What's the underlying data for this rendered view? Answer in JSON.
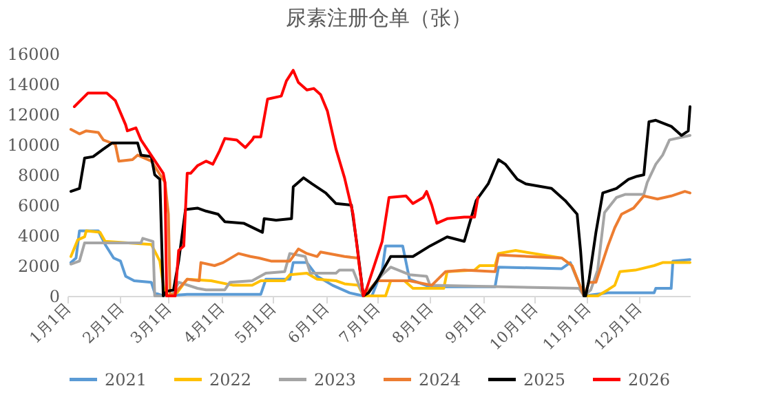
{
  "chart_data": {
    "type": "line",
    "title": "尿素注册仓单（张）",
    "legend": "bottom",
    "grid": false,
    "line_style": "solid",
    "marker": "none",
    "xlim": [
      "--01-01",
      "--12-31"
    ],
    "xticks": [
      {
        "value": "--01-01",
        "label": "1月1日"
      },
      {
        "value": "--02-01",
        "label": "2月1日"
      },
      {
        "value": "--03-01",
        "label": "3月1日"
      },
      {
        "value": "--04-01",
        "label": "4月1日"
      },
      {
        "value": "--05-01",
        "label": "5月1日"
      },
      {
        "value": "--06-01",
        "label": "6月1日"
      },
      {
        "value": "--07-01",
        "label": "7月1日"
      },
      {
        "value": "--08-01",
        "label": "8月1日"
      },
      {
        "value": "--09-01",
        "label": "9月1日"
      },
      {
        "value": "--10-01",
        "label": "10月1日"
      },
      {
        "value": "--11-01",
        "label": "11月1日"
      },
      {
        "value": "--12-01",
        "label": "12月1日"
      }
    ],
    "ylim": [
      0,
      16000
    ],
    "yticks": [
      0,
      2000,
      4000,
      6000,
      8000,
      10000,
      12000,
      14000,
      16000
    ],
    "series": [
      {
        "name": "2021",
        "color": "#5b9bd5",
        "x": [
          "--01-03",
          "--01-06",
          "--01-08",
          "--01-19",
          "--01-23",
          "--01-28",
          "--02-01",
          "--02-04",
          "--02-09",
          "--02-19",
          "--02-21",
          "--02-26",
          "--03-12",
          "--04-24",
          "--04-27",
          "--05-11",
          "--05-13",
          "--05-21",
          "--05-27",
          "--06-05",
          "--06-15",
          "--06-23",
          "--06-28",
          "--07-04",
          "--07-06",
          "--07-16",
          "--07-20",
          "--08-01",
          "--09-08",
          "--09-10",
          "--10-17",
          "--10-22",
          "--10-26",
          "--10-30",
          "--11-13",
          "--12-10",
          "--12-11",
          "--12-20",
          "--12-21",
          "--12-31"
        ],
        "values": [
          2200,
          2500,
          4300,
          4300,
          3400,
          2500,
          2300,
          1300,
          1000,
          900,
          200,
          0,
          100,
          100,
          1100,
          1100,
          2200,
          2200,
          1300,
          700,
          200,
          0,
          0,
          1700,
          3300,
          3300,
          1100,
          600,
          600,
          1900,
          1800,
          2200,
          1100,
          0,
          200,
          200,
          500,
          500,
          2300,
          2400
        ]
      },
      {
        "name": "2022",
        "color": "#ffc000",
        "x": [
          "--01-03",
          "--01-07",
          "--01-11",
          "--01-12",
          "--01-20",
          "--01-23",
          "--02-19",
          "--02-24",
          "--02-27",
          "--03-06",
          "--03-12",
          "--03-26",
          "--04-08",
          "--04-19",
          "--04-24",
          "--05-08",
          "--05-11",
          "--05-21",
          "--05-27",
          "--06-07",
          "--06-12",
          "--06-20",
          "--06-23",
          "--07-06",
          "--07-09",
          "--07-17",
          "--07-22",
          "--08-09",
          "--08-11",
          "--08-27",
          "--08-30",
          "--09-08",
          "--09-10",
          "--09-20",
          "--10-17",
          "--10-23",
          "--10-30",
          "--11-07",
          "--11-13",
          "--11-17",
          "--11-20",
          "--11-29",
          "--12-10",
          "--12-15",
          "--12-31"
        ],
        "values": [
          2600,
          3700,
          3900,
          4300,
          4200,
          3600,
          3400,
          2300,
          0,
          200,
          1100,
          1000,
          700,
          700,
          1000,
          1000,
          1400,
          1500,
          1100,
          1000,
          800,
          700,
          0,
          0,
          1000,
          1000,
          500,
          500,
          1600,
          1700,
          2000,
          2000,
          2800,
          3000,
          2500,
          2000,
          0,
          0,
          400,
          700,
          1600,
          1700,
          2000,
          2200,
          2200
        ]
      },
      {
        "name": "2023",
        "color": "#a5a5a5",
        "x": [
          "--01-03",
          "--01-08",
          "--01-11",
          "--02-13",
          "--02-14",
          "--02-20",
          "--02-21",
          "--03-03",
          "--03-07",
          "--03-18",
          "--03-23",
          "--04-03",
          "--04-06",
          "--04-19",
          "--04-27",
          "--05-08",
          "--05-11",
          "--05-20",
          "--05-23",
          "--06-07",
          "--06-09",
          "--06-17",
          "--06-23",
          "--06-25",
          "--07-04",
          "--07-09",
          "--07-20",
          "--07-30",
          "--08-01",
          "--10-27",
          "--10-30",
          "--11-03",
          "--11-07",
          "--11-11",
          "--11-18",
          "--11-23",
          "--12-04",
          "--12-06",
          "--12-11",
          "--12-15",
          "--12-19",
          "--12-31"
        ],
        "values": [
          2100,
          2300,
          3500,
          3500,
          3800,
          3600,
          0,
          0,
          900,
          500,
          400,
          400,
          900,
          1000,
          1500,
          1600,
          2800,
          2600,
          1500,
          1500,
          1700,
          1700,
          0,
          200,
          1400,
          1900,
          1400,
          1300,
          700,
          500,
          0,
          400,
          1700,
          5500,
          6500,
          6700,
          6700,
          7500,
          8700,
          9300,
          10300,
          10600
        ]
      },
      {
        "name": "2024",
        "color": "#ed7d31",
        "x": [
          "--01-03",
          "--01-08",
          "--01-12",
          "--01-19",
          "--01-22",
          "--01-29",
          "--01-31",
          "--02-08",
          "--02-11",
          "--02-19",
          "--02-27",
          "--03-01",
          "--03-02",
          "--03-05",
          "--03-12",
          "--03-19",
          "--03-20",
          "--03-28",
          "--04-02",
          "--04-11",
          "--04-18",
          "--04-23",
          "--04-30",
          "--05-11",
          "--05-16",
          "--05-21",
          "--05-27",
          "--05-29",
          "--06-12",
          "--06-20",
          "--06-23",
          "--06-25",
          "--07-01",
          "--07-20",
          "--08-02",
          "--08-10",
          "--08-21",
          "--09-08",
          "--09-10",
          "--10-17",
          "--10-23",
          "--10-30",
          "--11-02",
          "--11-06",
          "--11-13",
          "--11-17",
          "--11-21",
          "--11-28",
          "--12-04",
          "--12-12",
          "--12-20",
          "--12-28",
          "--12-31"
        ],
        "values": [
          11000,
          10700,
          10900,
          10800,
          10300,
          10000,
          8900,
          9000,
          9300,
          8900,
          7500,
          5400,
          0,
          200,
          1100,
          1000,
          2200,
          2000,
          2200,
          2800,
          2600,
          2500,
          2300,
          2300,
          3100,
          2800,
          2600,
          2900,
          2600,
          2500,
          0,
          200,
          1000,
          1000,
          700,
          1600,
          1700,
          1600,
          2700,
          2500,
          2000,
          0,
          900,
          900,
          3300,
          4500,
          5400,
          5800,
          6600,
          6400,
          6600,
          6900,
          6800
        ]
      },
      {
        "name": "2025",
        "color": "#000000",
        "x": [
          "--01-03",
          "--01-08",
          "--01-11",
          "--01-16",
          "--01-22",
          "--01-27",
          "--02-11",
          "--02-13",
          "--02-19",
          "--02-21",
          "--02-24",
          "--02-26",
          "--02-28",
          "--03-04",
          "--03-07",
          "--03-11",
          "--03-18",
          "--03-23",
          "--03-30",
          "--04-03",
          "--04-14",
          "--04-25",
          "--04-26",
          "--05-03",
          "--05-12",
          "--05-13",
          "--05-19",
          "--05-24",
          "--06-01",
          "--06-07",
          "--06-16",
          "--06-19",
          "--06-23",
          "--06-26",
          "--07-01",
          "--07-09",
          "--07-22",
          "--08-01",
          "--08-11",
          "--08-21",
          "--08-28",
          "--09-04",
          "--09-10",
          "--09-14",
          "--09-21",
          "--09-26",
          "--10-11",
          "--10-19",
          "--10-26",
          "--10-28",
          "--10-30",
          "--10-31",
          "--11-02",
          "--11-06",
          "--11-10",
          "--11-18",
          "--11-25",
          "--11-30",
          "--12-04",
          "--12-07",
          "--12-11",
          "--12-20",
          "--12-26",
          "--12-30",
          "--12-31"
        ],
        "values": [
          6900,
          7100,
          9100,
          9200,
          9700,
          10100,
          10100,
          9300,
          9200,
          8000,
          7700,
          0,
          300,
          400,
          2300,
          5700,
          5800,
          5600,
          5400,
          4900,
          4800,
          4200,
          5100,
          5000,
          5100,
          7200,
          7800,
          7400,
          6800,
          6100,
          6000,
          3600,
          0,
          200,
          1000,
          2600,
          2600,
          3300,
          3900,
          3600,
          6300,
          7400,
          9000,
          8700,
          7700,
          7400,
          7100,
          6300,
          5400,
          3000,
          0,
          0,
          1100,
          4200,
          6800,
          7100,
          7700,
          7900,
          8000,
          11500,
          11600,
          11200,
          10600,
          10900,
          12500
        ]
      },
      {
        "name": "2026",
        "color": "#ff0000",
        "x": [
          "--01-05",
          "--01-13",
          "--01-24",
          "--01-27",
          "--01-29",
          "--02-04",
          "--02-05",
          "--02-10",
          "--02-13",
          "--02-26",
          "--02-27",
          "--02-28",
          "--03-05",
          "--03-07",
          "--03-10",
          "--03-12",
          "--03-14",
          "--03-18",
          "--03-23",
          "--03-27",
          "--03-31",
          "--04-03",
          "--04-10",
          "--04-15",
          "--04-19",
          "--04-20",
          "--04-24",
          "--04-28",
          "--05-06",
          "--05-09",
          "--05-13",
          "--05-16",
          "--05-21",
          "--05-25",
          "--05-29",
          "--06-02",
          "--06-07",
          "--06-12",
          "--06-17",
          "--06-21",
          "--06-23",
          "--06-25",
          "--07-04",
          "--07-08",
          "--07-18",
          "--07-22",
          "--07-28",
          "--07-30",
          "--08-02",
          "--08-05",
          "--08-11",
          "--08-21",
          "--08-27",
          "--08-29"
        ],
        "values": [
          12500,
          13400,
          13400,
          13100,
          12900,
          11300,
          10900,
          11100,
          10300,
          8100,
          7500,
          0,
          0,
          3000,
          3300,
          8100,
          8100,
          8600,
          8900,
          8700,
          9600,
          10400,
          10300,
          9800,
          10300,
          10500,
          10500,
          13000,
          13200,
          14200,
          14900,
          14100,
          13600,
          13700,
          13300,
          12200,
          9700,
          7800,
          5400,
          1700,
          0,
          500,
          3600,
          6500,
          6600,
          6100,
          6500,
          6900,
          6000,
          4800,
          5100,
          5200,
          5200,
          6500
        ]
      }
    ]
  }
}
